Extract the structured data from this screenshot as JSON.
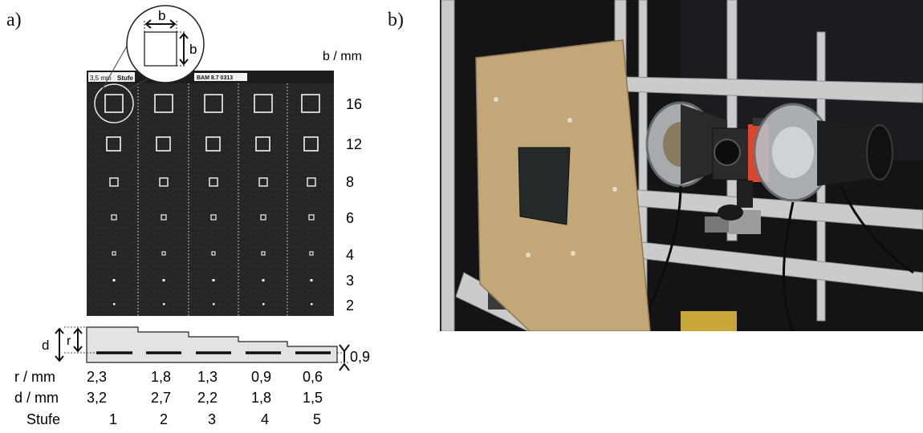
{
  "panel_a_label": "a)",
  "panel_b_label": "b)",
  "plate": {
    "header_left": "3,5 mm",
    "header_mid": "Stufe",
    "header_id": "BAM 8.7 0313",
    "b_axis_label": "b / mm",
    "b_values": [
      "16",
      "12",
      "8",
      "6",
      "4",
      "3",
      "2"
    ],
    "zoom_label_top": "b",
    "zoom_label_side": "b"
  },
  "profile": {
    "d_label": "d",
    "r_label": "r",
    "thickness_label": "0,9"
  },
  "table": {
    "rows": [
      {
        "label": "r / mm",
        "values": [
          "2,3",
          "1,8",
          "1,3",
          "0,9",
          "0,6"
        ]
      },
      {
        "label": "d / mm",
        "values": [
          "3,2",
          "2,7",
          "2,2",
          "1,8",
          "1,5"
        ]
      },
      {
        "label": "Stufe",
        "values": [
          "1",
          "2",
          "3",
          "4",
          "5"
        ]
      }
    ]
  },
  "colors": {
    "plate_dark": "#252525",
    "panel_tan": "#c2a779",
    "aluminium": "#c9cbcc",
    "camera_red": "#d9472e",
    "profile_fill": "#e3e3e3"
  }
}
